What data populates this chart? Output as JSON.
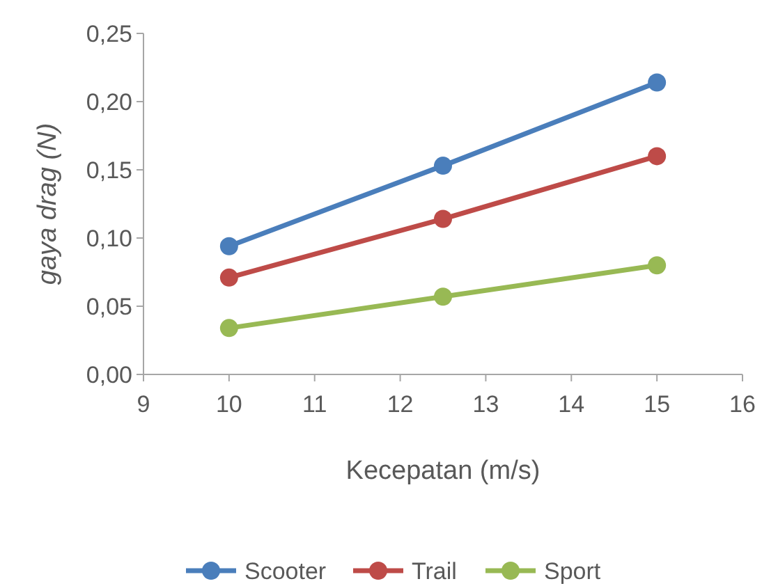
{
  "chart_data": {
    "type": "line",
    "xlabel": "Kecepatan (m/s)",
    "ylabel": "gaya drag  (N)",
    "x": [
      10,
      12.5,
      15
    ],
    "series": [
      {
        "name": "Scooter",
        "color": "#4a7ebb",
        "values": [
          0.094,
          0.153,
          0.214
        ]
      },
      {
        "name": "Trail",
        "color": "#be4b48",
        "values": [
          0.071,
          0.114,
          0.16
        ]
      },
      {
        "name": "Sport",
        "color": "#98b954",
        "values": [
          0.034,
          0.057,
          0.08
        ]
      }
    ],
    "xlim": [
      9,
      16
    ],
    "xticks": [
      9,
      10,
      11,
      12,
      13,
      14,
      15,
      16
    ],
    "ylim": [
      0,
      0.25
    ],
    "yticks": [
      {
        "value": 0,
        "label": "0,00"
      },
      {
        "value": 0.05,
        "label": "0,05"
      },
      {
        "value": 0.1,
        "label": "0,10"
      },
      {
        "value": 0.15,
        "label": "0,15"
      },
      {
        "value": 0.2,
        "label": "0,20"
      },
      {
        "value": 0.25,
        "label": "0,25"
      }
    ],
    "grid": false,
    "legend": "bottom",
    "marker": "circle",
    "line_style": "solid"
  }
}
